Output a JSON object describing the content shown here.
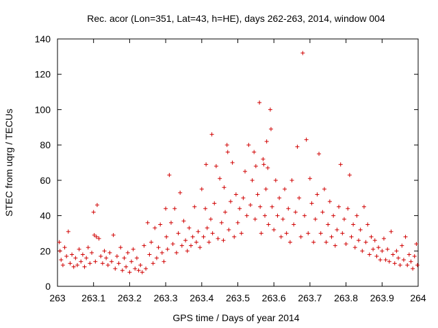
{
  "chart_data": {
    "type": "scatter",
    "title": "Rec. acor (Lon=351, Lat=43, h=HE), days 262-263, 2014, window 004",
    "xlabel": "GPS time / Days of year 2014",
    "ylabel": "STEC from uqrg / TECUs",
    "xlim": [
      263,
      264
    ],
    "ylim": [
      0,
      140
    ],
    "xticks": [
      263,
      263.1,
      263.2,
      263.3,
      263.4,
      263.5,
      263.6,
      263.7,
      263.8,
      263.9,
      264
    ],
    "xtick_labels": [
      "263",
      "263.1",
      "263.2",
      "263.3",
      "263.4",
      "263.5",
      "263.6",
      "263.7",
      "263.8",
      "263.9",
      "264"
    ],
    "yticks": [
      0,
      20,
      40,
      60,
      80,
      100,
      120,
      140
    ],
    "ytick_labels": [
      "0",
      "20",
      "40",
      "60",
      "80",
      "100",
      "120",
      "140"
    ],
    "grid": false,
    "marker": "+",
    "point_color": "#d00000",
    "points": [
      [
        263.005,
        25
      ],
      [
        263.007,
        20
      ],
      [
        263.01,
        15
      ],
      [
        263.015,
        12
      ],
      [
        263.02,
        22
      ],
      [
        263.025,
        17
      ],
      [
        263.03,
        31
      ],
      [
        263.035,
        13
      ],
      [
        263.04,
        18
      ],
      [
        263.045,
        11
      ],
      [
        263.05,
        16
      ],
      [
        263.055,
        12
      ],
      [
        263.06,
        21
      ],
      [
        263.065,
        14
      ],
      [
        263.07,
        18
      ],
      [
        263.075,
        11
      ],
      [
        263.08,
        16
      ],
      [
        263.085,
        22
      ],
      [
        263.09,
        13
      ],
      [
        263.095,
        19
      ],
      [
        263.1,
        42
      ],
      [
        263.102,
        29
      ],
      [
        263.105,
        14
      ],
      [
        263.108,
        28
      ],
      [
        263.11,
        46
      ],
      [
        263.115,
        27
      ],
      [
        263.12,
        17
      ],
      [
        263.125,
        13
      ],
      [
        263.13,
        20
      ],
      [
        263.135,
        16
      ],
      [
        263.14,
        12
      ],
      [
        263.145,
        19
      ],
      [
        263.15,
        14
      ],
      [
        263.155,
        29
      ],
      [
        263.16,
        10
      ],
      [
        263.165,
        17
      ],
      [
        263.17,
        13
      ],
      [
        263.175,
        22
      ],
      [
        263.18,
        9
      ],
      [
        263.185,
        16
      ],
      [
        263.19,
        11
      ],
      [
        263.195,
        19
      ],
      [
        263.2,
        8
      ],
      [
        263.205,
        14
      ],
      [
        263.21,
        21
      ],
      [
        263.215,
        10
      ],
      [
        263.22,
        16
      ],
      [
        263.225,
        9
      ],
      [
        263.23,
        12
      ],
      [
        263.235,
        8
      ],
      [
        263.24,
        23
      ],
      [
        263.245,
        10
      ],
      [
        263.25,
        36
      ],
      [
        263.255,
        18
      ],
      [
        263.26,
        25
      ],
      [
        263.265,
        13
      ],
      [
        263.27,
        33
      ],
      [
        263.275,
        16
      ],
      [
        263.28,
        22
      ],
      [
        263.285,
        35
      ],
      [
        263.29,
        19
      ],
      [
        263.295,
        14
      ],
      [
        263.3,
        44
      ],
      [
        263.302,
        28
      ],
      [
        263.305,
        21
      ],
      [
        263.31,
        63
      ],
      [
        263.315,
        36
      ],
      [
        263.32,
        24
      ],
      [
        263.325,
        44
      ],
      [
        263.33,
        19
      ],
      [
        263.335,
        30
      ],
      [
        263.34,
        53
      ],
      [
        263.345,
        23
      ],
      [
        263.35,
        37
      ],
      [
        263.355,
        26
      ],
      [
        263.36,
        20
      ],
      [
        263.365,
        33
      ],
      [
        263.37,
        23
      ],
      [
        263.375,
        28
      ],
      [
        263.38,
        45
      ],
      [
        263.385,
        25
      ],
      [
        263.39,
        31
      ],
      [
        263.395,
        22
      ],
      [
        263.4,
        55
      ],
      [
        263.405,
        28
      ],
      [
        263.41,
        44
      ],
      [
        263.412,
        69
      ],
      [
        263.415,
        33
      ],
      [
        263.42,
        25
      ],
      [
        263.425,
        38
      ],
      [
        263.428,
        86
      ],
      [
        263.43,
        30
      ],
      [
        263.435,
        47
      ],
      [
        263.44,
        68
      ],
      [
        263.445,
        27
      ],
      [
        263.45,
        61
      ],
      [
        263.455,
        36
      ],
      [
        263.46,
        26
      ],
      [
        263.462,
        56
      ],
      [
        263.465,
        42
      ],
      [
        263.47,
        80
      ],
      [
        263.472,
        76
      ],
      [
        263.475,
        32
      ],
      [
        263.48,
        48
      ],
      [
        263.485,
        70
      ],
      [
        263.49,
        28
      ],
      [
        263.495,
        52
      ],
      [
        263.5,
        36
      ],
      [
        263.505,
        44
      ],
      [
        263.51,
        30
      ],
      [
        263.515,
        50
      ],
      [
        263.52,
        65
      ],
      [
        263.525,
        40
      ],
      [
        263.53,
        80
      ],
      [
        263.535,
        46
      ],
      [
        263.54,
        60
      ],
      [
        263.545,
        76
      ],
      [
        263.548,
        38
      ],
      [
        263.55,
        68
      ],
      [
        263.555,
        52
      ],
      [
        263.56,
        104
      ],
      [
        263.562,
        45
      ],
      [
        263.565,
        30
      ],
      [
        263.57,
        72
      ],
      [
        263.572,
        69
      ],
      [
        263.575,
        40
      ],
      [
        263.578,
        55
      ],
      [
        263.58,
        82
      ],
      [
        263.583,
        67
      ],
      [
        263.585,
        35
      ],
      [
        263.59,
        100
      ],
      [
        263.592,
        89
      ],
      [
        263.595,
        45
      ],
      [
        263.6,
        32
      ],
      [
        263.605,
        60
      ],
      [
        263.61,
        40
      ],
      [
        263.615,
        50
      ],
      [
        263.62,
        28
      ],
      [
        263.625,
        38
      ],
      [
        263.63,
        55
      ],
      [
        263.635,
        30
      ],
      [
        263.64,
        44
      ],
      [
        263.645,
        25
      ],
      [
        263.65,
        60
      ],
      [
        263.655,
        35
      ],
      [
        263.66,
        42
      ],
      [
        263.665,
        79
      ],
      [
        263.67,
        50
      ],
      [
        263.675,
        28
      ],
      [
        263.68,
        132
      ],
      [
        263.685,
        40
      ],
      [
        263.69,
        83
      ],
      [
        263.695,
        30
      ],
      [
        263.7,
        61
      ],
      [
        263.705,
        47
      ],
      [
        263.71,
        25
      ],
      [
        263.715,
        38
      ],
      [
        263.72,
        52
      ],
      [
        263.725,
        75
      ],
      [
        263.73,
        30
      ],
      [
        263.735,
        42
      ],
      [
        263.74,
        55
      ],
      [
        263.745,
        25
      ],
      [
        263.75,
        35
      ],
      [
        263.755,
        48
      ],
      [
        263.76,
        28
      ],
      [
        263.765,
        40
      ],
      [
        263.77,
        23
      ],
      [
        263.775,
        32
      ],
      [
        263.78,
        45
      ],
      [
        263.785,
        69
      ],
      [
        263.79,
        30
      ],
      [
        263.795,
        38
      ],
      [
        263.8,
        24
      ],
      [
        263.805,
        44
      ],
      [
        263.81,
        63
      ],
      [
        263.815,
        28
      ],
      [
        263.82,
        35
      ],
      [
        263.825,
        22
      ],
      [
        263.83,
        40
      ],
      [
        263.835,
        26
      ],
      [
        263.84,
        32
      ],
      [
        263.845,
        20
      ],
      [
        263.85,
        45
      ],
      [
        263.855,
        25
      ],
      [
        263.86,
        35
      ],
      [
        263.865,
        18
      ],
      [
        263.87,
        28
      ],
      [
        263.875,
        21
      ],
      [
        263.88,
        26
      ],
      [
        263.885,
        17
      ],
      [
        263.89,
        22
      ],
      [
        263.895,
        15
      ],
      [
        263.9,
        20
      ],
      [
        263.905,
        27
      ],
      [
        263.91,
        15
      ],
      [
        263.915,
        21
      ],
      [
        263.92,
        14
      ],
      [
        263.925,
        31
      ],
      [
        263.93,
        18
      ],
      [
        263.935,
        13
      ],
      [
        263.94,
        20
      ],
      [
        263.945,
        16
      ],
      [
        263.95,
        12
      ],
      [
        263.955,
        23
      ],
      [
        263.96,
        15
      ],
      [
        263.965,
        28
      ],
      [
        263.97,
        12
      ],
      [
        263.975,
        18
      ],
      [
        263.98,
        14
      ],
      [
        263.985,
        10
      ],
      [
        263.99,
        17
      ],
      [
        263.995,
        24
      ],
      [
        263.998,
        12
      ]
    ]
  }
}
